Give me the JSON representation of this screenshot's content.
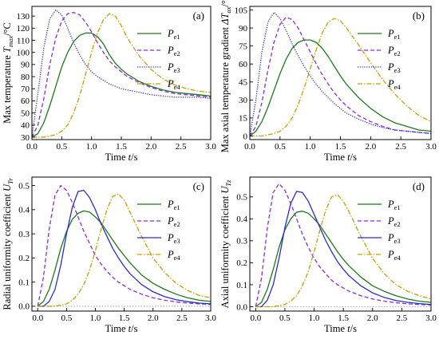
{
  "chart_data": [
    {
      "type": "line",
      "panel_label": "(a)",
      "ylabel": "Max temperature T_max/°C",
      "ylabel_parts": {
        "main": "Max temperature ",
        "symbol": "T",
        "sub": "max",
        "unit": "/°C"
      },
      "xlabel": "Time t/s",
      "xlabel_parts": {
        "main": "Time ",
        "symbol": "t",
        "unit": "/s"
      },
      "xlim": [
        0.0,
        3.0
      ],
      "ylim": [
        28,
        138
      ],
      "xticks": [
        0.0,
        0.5,
        1.0,
        1.5,
        2.0,
        2.5,
        3.0
      ],
      "xtick_labels": [
        "0.0",
        "0.5",
        "1.0",
        "1.5",
        "2.0",
        "2.5",
        "3.0"
      ],
      "yticks": [
        30,
        40,
        50,
        60,
        70,
        80,
        90,
        100,
        110,
        120,
        130
      ],
      "ytick_labels": [
        "30",
        "40",
        "50",
        "60",
        "70",
        "80",
        "90",
        "100",
        "110",
        "120",
        "130"
      ],
      "legend": "top-right",
      "reference_line": null,
      "x": [
        0,
        0.1,
        0.2,
        0.3,
        0.4,
        0.5,
        0.6,
        0.7,
        0.8,
        0.9,
        1.0,
        1.1,
        1.2,
        1.3,
        1.4,
        1.5,
        1.6,
        1.8,
        2.0,
        2.2,
        2.4,
        2.6,
        2.8,
        3.0
      ],
      "series": [
        {
          "name": "P_e1",
          "label_main": "P",
          "label_sub": "e1",
          "color": "#1a7a1a",
          "dash": "solid",
          "values": [
            30,
            33,
            42,
            56,
            72,
            88,
            100,
            109,
            114,
            116,
            116,
            113,
            107,
            98,
            91,
            86,
            82,
            76,
            72,
            69,
            67,
            66,
            65,
            64
          ]
        },
        {
          "name": "P_e2",
          "label_main": "P",
          "label_sub": "e2",
          "color": "#8a2be2",
          "dash": "dashed",
          "values": [
            30,
            40,
            62,
            90,
            112,
            126,
            132,
            133,
            131,
            125,
            117,
            108,
            100,
            93,
            88,
            84,
            80,
            75,
            71,
            68,
            66,
            65,
            64,
            63
          ]
        },
        {
          "name": "P_e3",
          "label_main": "P",
          "label_sub": "e3",
          "color": "#2b2bd4",
          "dash": "dotted",
          "values": [
            30,
            66,
            104,
            128,
            135,
            131,
            120,
            108,
            98,
            90,
            84,
            80,
            77,
            74,
            72,
            70,
            69,
            67,
            65,
            64,
            63,
            63,
            63,
            62
          ]
        },
        {
          "name": "P_e4",
          "label_main": "P",
          "label_sub": "e4",
          "color": "#c8a000",
          "dash": "dashdot",
          "values": [
            30,
            30,
            30,
            31,
            32,
            35,
            40,
            50,
            64,
            82,
            100,
            116,
            127,
            132,
            130,
            122,
            112,
            97,
            86,
            78,
            73,
            70,
            68,
            67
          ]
        }
      ]
    },
    {
      "type": "line",
      "panel_label": "(b)",
      "ylabel": "Max axial temperature gradient ΔT_ax/°C",
      "ylabel_parts": {
        "main": "Max axial temperature gradient ",
        "symbol": "ΔT",
        "sub": "ax",
        "unit": "/°C"
      },
      "xlabel": "Time t/s",
      "xlabel_parts": {
        "main": "Time ",
        "symbol": "t",
        "unit": "/s"
      },
      "xlim": [
        0.0,
        3.0
      ],
      "ylim": [
        -3,
        108
      ],
      "xticks": [
        0.0,
        0.5,
        1.0,
        1.5,
        2.0,
        2.5,
        3.0
      ],
      "xtick_labels": [
        "0.0",
        "0.5",
        "1.0",
        "1.5",
        "2.0",
        "2.5",
        "3.0"
      ],
      "yticks": [
        0,
        15,
        30,
        45,
        60,
        75,
        90,
        105
      ],
      "ytick_labels": [
        "0",
        "15",
        "30",
        "45",
        "60",
        "75",
        "90",
        "105"
      ],
      "legend": "top-right",
      "reference_line": null,
      "x": [
        0,
        0.1,
        0.2,
        0.3,
        0.4,
        0.5,
        0.6,
        0.7,
        0.8,
        0.9,
        1.0,
        1.1,
        1.2,
        1.3,
        1.4,
        1.5,
        1.6,
        1.8,
        2.0,
        2.2,
        2.4,
        2.6,
        2.8,
        3.0
      ],
      "series": [
        {
          "name": "P_e1",
          "label_main": "P",
          "label_sub": "e1",
          "color": "#1a7a1a",
          "dash": "solid",
          "values": [
            0,
            4,
            12,
            24,
            38,
            52,
            64,
            73,
            78,
            80,
            80,
            78,
            73,
            66,
            58,
            50,
            43,
            32,
            23,
            16,
            11,
            8,
            5,
            4
          ]
        },
        {
          "name": "P_e2",
          "label_main": "P",
          "label_sub": "e2",
          "color": "#8a2be2",
          "dash": "dashed",
          "values": [
            0,
            8,
            28,
            55,
            78,
            93,
            99,
            97,
            90,
            80,
            70,
            60,
            51,
            43,
            36,
            30,
            25,
            17,
            12,
            8,
            5,
            4,
            3,
            2
          ]
        },
        {
          "name": "P_e3",
          "label_main": "P",
          "label_sub": "e3",
          "color": "#2b2bd4",
          "dash": "dotted",
          "values": [
            0,
            30,
            70,
            95,
            103,
            98,
            88,
            77,
            67,
            58,
            50,
            43,
            37,
            32,
            27,
            23,
            19,
            14,
            10,
            7,
            5,
            4,
            3,
            2
          ]
        },
        {
          "name": "P_e4",
          "label_main": "P",
          "label_sub": "e4",
          "color": "#c8a000",
          "dash": "dashdot",
          "values": [
            0,
            0,
            0,
            1,
            2,
            4,
            8,
            15,
            26,
            40,
            56,
            72,
            86,
            95,
            98,
            96,
            90,
            76,
            61,
            47,
            35,
            25,
            17,
            12
          ]
        }
      ]
    },
    {
      "type": "line",
      "panel_label": "(c)",
      "ylabel": "Radial uniformity coefficient U_Tr",
      "ylabel_parts": {
        "main": "Radial uniformity coefficient ",
        "symbol": "U",
        "sub": "Tr",
        "unit": ""
      },
      "xlabel": "Time t/s",
      "xlabel_parts": {
        "main": "Time ",
        "symbol": "t",
        "unit": "/s"
      },
      "xlim": [
        -0.1,
        3.0
      ],
      "ylim": [
        -0.02,
        0.535
      ],
      "xticks": [
        0.0,
        0.5,
        1.0,
        1.5,
        2.0,
        2.5,
        3.0
      ],
      "xtick_labels": [
        "0.0",
        "0.5",
        "1.0",
        "1.5",
        "2.0",
        "2.5",
        "3.0"
      ],
      "yticks": [
        0.0,
        0.1,
        0.2,
        0.3,
        0.4,
        0.5
      ],
      "ytick_labels": [
        "0.0",
        "0.1",
        "0.2",
        "0.3",
        "0.4",
        "0.5"
      ],
      "legend": "top-right",
      "reference_line": 0.0,
      "x": [
        0,
        0.1,
        0.2,
        0.3,
        0.4,
        0.5,
        0.6,
        0.7,
        0.8,
        0.9,
        1.0,
        1.1,
        1.2,
        1.3,
        1.4,
        1.5,
        1.6,
        1.8,
        2.0,
        2.2,
        2.4,
        2.6,
        2.8,
        3.0
      ],
      "series": [
        {
          "name": "P_e1",
          "label_main": "P",
          "label_sub": "e1",
          "color": "#1a7a1a",
          "dash": "solid",
          "values": [
            0,
            0.02,
            0.07,
            0.15,
            0.24,
            0.31,
            0.36,
            0.385,
            0.395,
            0.39,
            0.37,
            0.345,
            0.31,
            0.275,
            0.24,
            0.21,
            0.18,
            0.13,
            0.095,
            0.07,
            0.05,
            0.035,
            0.025,
            0.02
          ]
        },
        {
          "name": "P_e2",
          "label_main": "P",
          "label_sub": "e2",
          "color": "#8a2be2",
          "dash": "dashed",
          "values": [
            0,
            0.12,
            0.32,
            0.46,
            0.5,
            0.48,
            0.43,
            0.37,
            0.31,
            0.26,
            0.21,
            0.175,
            0.145,
            0.12,
            0.1,
            0.085,
            0.07,
            0.05,
            0.035,
            0.025,
            0.018,
            0.013,
            0.01,
            0.008
          ]
        },
        {
          "name": "P_e3",
          "label_main": "P",
          "label_sub": "e3",
          "color": "#2b2bd4",
          "dash": "solid",
          "values": [
            0,
            0.0,
            0.02,
            0.07,
            0.17,
            0.3,
            0.41,
            0.475,
            0.48,
            0.45,
            0.4,
            0.34,
            0.29,
            0.24,
            0.2,
            0.165,
            0.135,
            0.09,
            0.06,
            0.04,
            0.027,
            0.019,
            0.013,
            0.01
          ]
        },
        {
          "name": "P_e4",
          "label_main": "P",
          "label_sub": "e4",
          "color": "#c8a000",
          "dash": "dashdot",
          "values": [
            0,
            0,
            0,
            0,
            0.005,
            0.01,
            0.025,
            0.05,
            0.09,
            0.15,
            0.23,
            0.32,
            0.4,
            0.455,
            0.465,
            0.44,
            0.39,
            0.29,
            0.2,
            0.14,
            0.095,
            0.065,
            0.045,
            0.035
          ]
        }
      ]
    },
    {
      "type": "line",
      "panel_label": "(d)",
      "ylabel": "Axial uniformity coefficient U_Tz",
      "ylabel_parts": {
        "main": "Axial uniformity coefficient ",
        "symbol": "U",
        "sub": "Tz",
        "unit": ""
      },
      "xlabel": "Time t/s",
      "xlabel_parts": {
        "main": "Time ",
        "symbol": "t",
        "unit": "/s"
      },
      "xlim": [
        -0.1,
        3.0
      ],
      "ylim": [
        -0.02,
        0.59
      ],
      "xticks": [
        0.0,
        0.5,
        1.0,
        1.5,
        2.0,
        2.5,
        3.0
      ],
      "xtick_labels": [
        "0.0",
        "0.5",
        "1.0",
        "1.5",
        "2.0",
        "2.5",
        "3.0"
      ],
      "yticks": [
        0.0,
        0.1,
        0.2,
        0.3,
        0.4,
        0.5
      ],
      "ytick_labels": [
        "0.0",
        "0.1",
        "0.2",
        "0.3",
        "0.4",
        "0.5"
      ],
      "legend": "top-right",
      "reference_line": 0.0,
      "x": [
        0,
        0.1,
        0.2,
        0.3,
        0.4,
        0.5,
        0.6,
        0.7,
        0.8,
        0.9,
        1.0,
        1.1,
        1.2,
        1.3,
        1.4,
        1.5,
        1.6,
        1.8,
        2.0,
        2.2,
        2.4,
        2.6,
        2.8,
        3.0
      ],
      "series": [
        {
          "name": "P_e1",
          "label_main": "P",
          "label_sub": "e1",
          "color": "#1a7a1a",
          "dash": "solid",
          "values": [
            0,
            0.02,
            0.08,
            0.17,
            0.27,
            0.35,
            0.4,
            0.43,
            0.435,
            0.425,
            0.4,
            0.37,
            0.33,
            0.29,
            0.25,
            0.215,
            0.185,
            0.135,
            0.095,
            0.07,
            0.05,
            0.035,
            0.025,
            0.02
          ]
        },
        {
          "name": "P_e2",
          "label_main": "P",
          "label_sub": "e2",
          "color": "#8a2be2",
          "dash": "dashed",
          "values": [
            0,
            0.13,
            0.36,
            0.52,
            0.56,
            0.53,
            0.47,
            0.4,
            0.33,
            0.27,
            0.22,
            0.18,
            0.15,
            0.12,
            0.1,
            0.085,
            0.07,
            0.05,
            0.035,
            0.025,
            0.018,
            0.013,
            0.01,
            0.008
          ]
        },
        {
          "name": "P_e3",
          "label_main": "P",
          "label_sub": "e3",
          "color": "#2b2bd4",
          "dash": "solid",
          "values": [
            0,
            0.0,
            0.03,
            0.1,
            0.22,
            0.36,
            0.47,
            0.525,
            0.52,
            0.48,
            0.42,
            0.36,
            0.3,
            0.25,
            0.205,
            0.17,
            0.14,
            0.095,
            0.063,
            0.042,
            0.028,
            0.02,
            0.014,
            0.01
          ]
        },
        {
          "name": "P_e4",
          "label_main": "P",
          "label_sub": "e4",
          "color": "#c8a000",
          "dash": "dashdot",
          "values": [
            0,
            0,
            0,
            0,
            0.005,
            0.01,
            0.025,
            0.05,
            0.095,
            0.16,
            0.25,
            0.35,
            0.44,
            0.5,
            0.51,
            0.48,
            0.43,
            0.32,
            0.22,
            0.15,
            0.1,
            0.07,
            0.05,
            0.035
          ]
        }
      ]
    }
  ]
}
